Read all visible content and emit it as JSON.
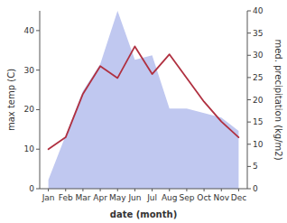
{
  "chart_data": {
    "type": "line",
    "categories": [
      "Jan",
      "Feb",
      "Mar",
      "Apr",
      "May",
      "Jun",
      "Jul",
      "Aug",
      "Sep",
      "Oct",
      "Nov",
      "Dec"
    ],
    "xlabel": "date (month)",
    "ylabel": "max temp (C)",
    "y2label": "med. precipitation (kg/m2)",
    "series": [
      {
        "type": "area",
        "axis": "y2",
        "color": "#c0c8f0",
        "values": [
          2,
          12,
          22,
          28,
          40,
          29,
          30,
          18,
          18,
          17,
          16,
          13
        ]
      },
      {
        "type": "line",
        "color": "#b03040",
        "values": [
          10,
          13,
          24,
          31,
          28,
          36,
          29,
          34,
          28,
          22,
          17,
          13
        ]
      }
    ],
    "ylim": [
      0,
      45
    ],
    "yticks": [
      0,
      10,
      20,
      30,
      40
    ],
    "y2lim": [
      0,
      40
    ],
    "y2ticks": [
      0,
      5,
      10,
      15,
      20,
      25,
      30,
      35,
      40
    ]
  }
}
